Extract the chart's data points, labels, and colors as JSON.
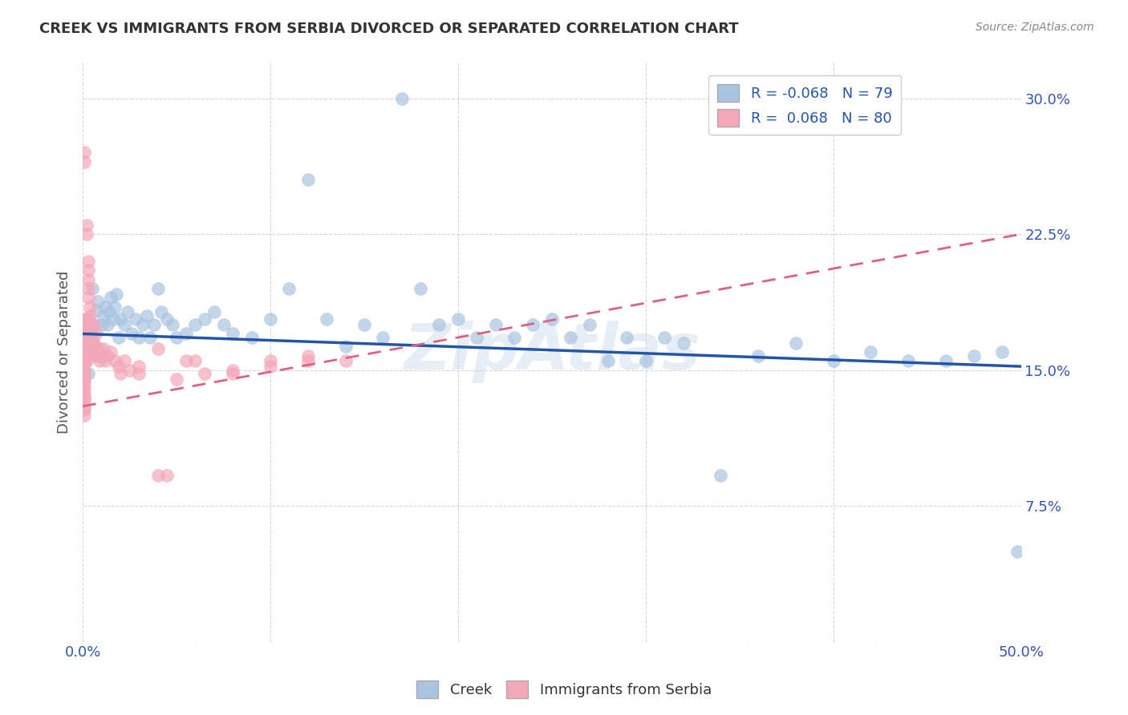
{
  "title": "CREEK VS IMMIGRANTS FROM SERBIA DIVORCED OR SEPARATED CORRELATION CHART",
  "source": "Source: ZipAtlas.com",
  "ylabel": "Divorced or Separated",
  "xlim": [
    0.0,
    0.5
  ],
  "ylim": [
    0.0,
    0.32
  ],
  "yticks": [
    0.0,
    0.075,
    0.15,
    0.225,
    0.3
  ],
  "yticklabels": [
    "",
    "7.5%",
    "15.0%",
    "22.5%",
    "30.0%"
  ],
  "grid_color": "#cccccc",
  "background_color": "#ffffff",
  "watermark": "ZipAtlas",
  "creek_color": "#a8c4e0",
  "serbia_color": "#f4a7b9",
  "creek_line_color": "#2255aa",
  "serbia_line_color": "#e06080",
  "legend_creek_R": "-0.068",
  "legend_creek_N": "79",
  "legend_serbia_R": "0.068",
  "legend_serbia_N": "80",
  "creek_line_y0": 0.17,
  "creek_line_y1": 0.152,
  "serbia_line_y0": 0.13,
  "serbia_line_y1": 0.225,
  "creek_x": [
    0.001,
    0.001,
    0.002,
    0.002,
    0.003,
    0.003,
    0.004,
    0.005,
    0.005,
    0.006,
    0.007,
    0.007,
    0.008,
    0.009,
    0.01,
    0.011,
    0.012,
    0.013,
    0.014,
    0.015,
    0.016,
    0.017,
    0.018,
    0.019,
    0.02,
    0.022,
    0.024,
    0.026,
    0.028,
    0.03,
    0.032,
    0.034,
    0.036,
    0.038,
    0.04,
    0.042,
    0.045,
    0.048,
    0.05,
    0.055,
    0.06,
    0.065,
    0.07,
    0.075,
    0.08,
    0.09,
    0.1,
    0.11,
    0.12,
    0.13,
    0.14,
    0.15,
    0.16,
    0.17,
    0.18,
    0.19,
    0.2,
    0.21,
    0.22,
    0.23,
    0.24,
    0.25,
    0.26,
    0.27,
    0.28,
    0.29,
    0.3,
    0.31,
    0.32,
    0.34,
    0.36,
    0.38,
    0.4,
    0.42,
    0.44,
    0.46,
    0.475,
    0.49,
    0.498
  ],
  "creek_y": [
    0.17,
    0.163,
    0.178,
    0.155,
    0.16,
    0.148,
    0.172,
    0.168,
    0.195,
    0.175,
    0.183,
    0.158,
    0.188,
    0.162,
    0.175,
    0.18,
    0.185,
    0.175,
    0.182,
    0.19,
    0.178,
    0.185,
    0.192,
    0.168,
    0.178,
    0.175,
    0.182,
    0.17,
    0.178,
    0.168,
    0.175,
    0.18,
    0.168,
    0.175,
    0.195,
    0.182,
    0.178,
    0.175,
    0.168,
    0.17,
    0.175,
    0.178,
    0.182,
    0.175,
    0.17,
    0.168,
    0.178,
    0.195,
    0.255,
    0.178,
    0.163,
    0.175,
    0.168,
    0.3,
    0.195,
    0.175,
    0.178,
    0.168,
    0.175,
    0.168,
    0.175,
    0.178,
    0.168,
    0.175,
    0.155,
    0.168,
    0.155,
    0.168,
    0.165,
    0.092,
    0.158,
    0.165,
    0.155,
    0.16,
    0.155,
    0.155,
    0.158,
    0.16,
    0.05
  ],
  "serbia_x": [
    0.0,
    0.0,
    0.0,
    0.0,
    0.0,
    0.0,
    0.0,
    0.0,
    0.0,
    0.0,
    0.0,
    0.0,
    0.001,
    0.001,
    0.001,
    0.001,
    0.001,
    0.001,
    0.001,
    0.001,
    0.001,
    0.001,
    0.001,
    0.001,
    0.001,
    0.001,
    0.001,
    0.001,
    0.001,
    0.001,
    0.002,
    0.002,
    0.002,
    0.002,
    0.002,
    0.002,
    0.002,
    0.003,
    0.003,
    0.003,
    0.003,
    0.003,
    0.004,
    0.004,
    0.004,
    0.005,
    0.005,
    0.005,
    0.006,
    0.006,
    0.007,
    0.007,
    0.008,
    0.009,
    0.01,
    0.011,
    0.012,
    0.013,
    0.015,
    0.017,
    0.019,
    0.022,
    0.025,
    0.03,
    0.04,
    0.05,
    0.065,
    0.08,
    0.1,
    0.12,
    0.04,
    0.06,
    0.08,
    0.1,
    0.12,
    0.14,
    0.02,
    0.03,
    0.045,
    0.055
  ],
  "serbia_y": [
    0.155,
    0.148,
    0.145,
    0.142,
    0.14,
    0.16,
    0.163,
    0.158,
    0.155,
    0.15,
    0.147,
    0.143,
    0.27,
    0.265,
    0.178,
    0.172,
    0.165,
    0.16,
    0.155,
    0.15,
    0.148,
    0.145,
    0.143,
    0.14,
    0.137,
    0.135,
    0.133,
    0.13,
    0.128,
    0.125,
    0.23,
    0.225,
    0.178,
    0.172,
    0.165,
    0.16,
    0.155,
    0.21,
    0.205,
    0.2,
    0.195,
    0.19,
    0.185,
    0.18,
    0.175,
    0.17,
    0.165,
    0.16,
    0.175,
    0.165,
    0.17,
    0.162,
    0.158,
    0.155,
    0.158,
    0.162,
    0.155,
    0.158,
    0.16,
    0.155,
    0.152,
    0.155,
    0.15,
    0.148,
    0.092,
    0.145,
    0.148,
    0.15,
    0.152,
    0.155,
    0.162,
    0.155,
    0.148,
    0.155,
    0.158,
    0.155,
    0.148,
    0.152,
    0.092,
    0.155
  ]
}
